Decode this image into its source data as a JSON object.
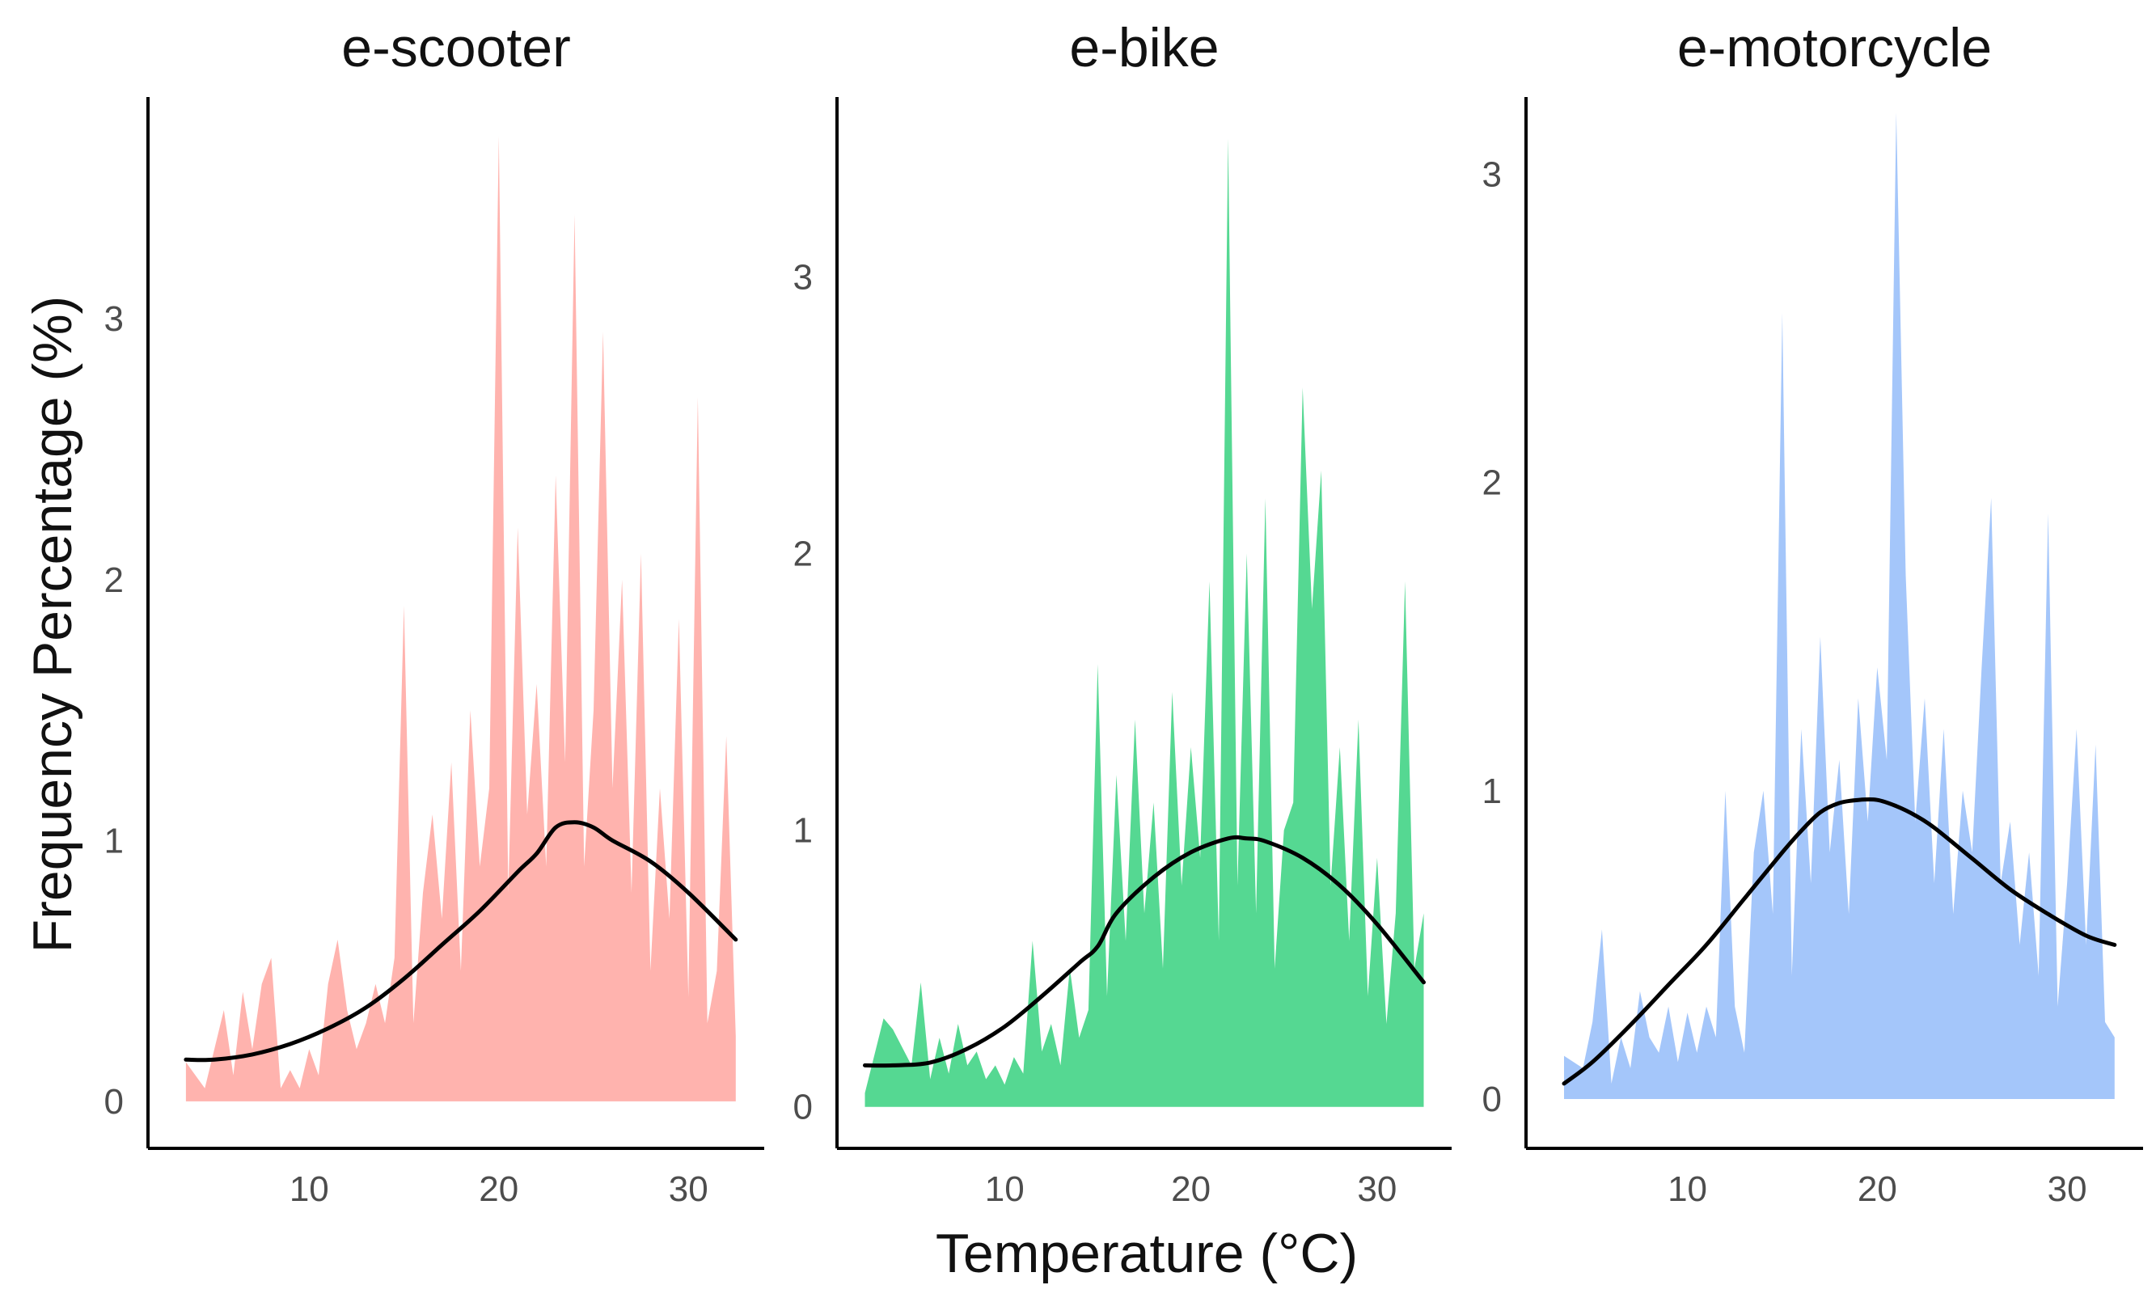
{
  "chart_data": {
    "type": "area",
    "xlabel": "Temperature (°C)",
    "ylabel": "Frequency Percentage (%)",
    "x_ticks": [
      10,
      20,
      30
    ],
    "panels": [
      {
        "title": "e-scooter",
        "color": "#ffb3ae",
        "xlim": [
          1.5,
          34
        ],
        "ylim": [
          -0.18,
          3.85
        ],
        "y_ticks": [
          0,
          1,
          2,
          3
        ],
        "x": [
          3.5,
          4.5,
          5.5,
          6.0,
          6.5,
          7.0,
          7.5,
          8.0,
          8.5,
          9.0,
          9.5,
          10.0,
          10.5,
          11.0,
          11.5,
          12.0,
          12.5,
          13.0,
          13.5,
          14.0,
          14.5,
          15.0,
          15.5,
          16.0,
          16.5,
          17.0,
          17.5,
          18.0,
          18.5,
          19.0,
          19.5,
          20.0,
          20.5,
          21.0,
          21.5,
          22.0,
          22.5,
          23.0,
          23.5,
          24.0,
          24.5,
          25.0,
          25.5,
          26.0,
          26.5,
          27.0,
          27.5,
          28.0,
          28.5,
          29.0,
          29.5,
          30.0,
          30.5,
          31.0,
          31.5,
          32.0,
          32.5
        ],
        "values": [
          0.15,
          0.05,
          0.35,
          0.1,
          0.42,
          0.2,
          0.45,
          0.55,
          0.05,
          0.12,
          0.05,
          0.2,
          0.1,
          0.45,
          0.62,
          0.35,
          0.2,
          0.3,
          0.45,
          0.3,
          0.55,
          1.9,
          0.3,
          0.8,
          1.1,
          0.7,
          1.3,
          0.5,
          1.5,
          0.9,
          1.2,
          3.7,
          0.8,
          2.2,
          1.1,
          1.6,
          0.9,
          2.4,
          1.3,
          3.4,
          0.9,
          1.5,
          2.95,
          1.2,
          2.0,
          0.8,
          2.1,
          0.5,
          1.2,
          0.7,
          1.85,
          0.4,
          2.7,
          0.3,
          0.5,
          1.4,
          0.25
        ],
        "smooth_x": [
          3.5,
          5,
          7,
          9,
          11,
          13,
          15,
          17,
          19,
          21,
          22,
          23,
          24,
          25,
          26,
          28,
          30,
          32.5
        ],
        "smooth_y": [
          0.16,
          0.16,
          0.18,
          0.22,
          0.28,
          0.36,
          0.47,
          0.6,
          0.73,
          0.88,
          0.95,
          1.05,
          1.07,
          1.05,
          1.0,
          0.92,
          0.8,
          0.62
        ]
      },
      {
        "title": "e-bike",
        "color": "#55d892",
        "xlim": [
          1.0,
          34
        ],
        "ylim": [
          -0.15,
          3.65
        ],
        "y_ticks": [
          0,
          1,
          2,
          3
        ],
        "x": [
          2.5,
          3.5,
          4.0,
          5.0,
          5.5,
          6.0,
          6.5,
          7.0,
          7.5,
          8.0,
          8.5,
          9.0,
          9.5,
          10.0,
          10.5,
          11.0,
          11.5,
          12.0,
          12.5,
          13.0,
          13.5,
          14.0,
          14.5,
          15.0,
          15.5,
          16.0,
          16.5,
          17.0,
          17.5,
          18.0,
          18.5,
          19.0,
          19.5,
          20.0,
          20.5,
          21.0,
          21.5,
          22.0,
          22.5,
          23.0,
          23.5,
          24.0,
          24.5,
          25.0,
          25.5,
          26.0,
          26.5,
          27.0,
          27.5,
          28.0,
          28.5,
          29.0,
          29.5,
          30.0,
          30.5,
          31.0,
          31.5,
          32.0,
          32.5
        ],
        "values": [
          0.05,
          0.32,
          0.28,
          0.15,
          0.45,
          0.1,
          0.25,
          0.12,
          0.3,
          0.15,
          0.2,
          0.1,
          0.15,
          0.08,
          0.18,
          0.12,
          0.6,
          0.2,
          0.3,
          0.15,
          0.5,
          0.25,
          0.35,
          1.6,
          0.4,
          1.2,
          0.6,
          1.4,
          0.7,
          1.1,
          0.5,
          1.5,
          0.8,
          1.3,
          0.9,
          1.9,
          0.6,
          3.5,
          0.8,
          2.0,
          0.7,
          2.2,
          0.5,
          1.0,
          1.1,
          2.6,
          1.8,
          2.3,
          0.8,
          1.3,
          0.6,
          1.4,
          0.4,
          0.9,
          0.3,
          0.7,
          1.9,
          0.5,
          0.7
        ],
        "smooth_x": [
          2.5,
          4,
          6,
          8,
          10,
          12,
          14,
          15,
          16,
          18,
          20,
          22,
          23,
          24,
          26,
          28,
          30,
          32.5
        ],
        "smooth_y": [
          0.15,
          0.15,
          0.16,
          0.21,
          0.29,
          0.4,
          0.52,
          0.58,
          0.7,
          0.83,
          0.92,
          0.97,
          0.97,
          0.96,
          0.9,
          0.8,
          0.66,
          0.45
        ]
      },
      {
        "title": "e-motorcycle",
        "color": "#a4c6fa",
        "xlim": [
          1.5,
          34
        ],
        "ylim": [
          -0.16,
          3.25
        ],
        "y_ticks": [
          0,
          1,
          2,
          3
        ],
        "x": [
          3.5,
          4.5,
          5.0,
          5.5,
          6.0,
          6.5,
          7.0,
          7.5,
          8.0,
          8.5,
          9.0,
          9.5,
          10.0,
          10.5,
          11.0,
          11.5,
          12.0,
          12.5,
          13.0,
          13.5,
          14.0,
          14.5,
          15.0,
          15.5,
          16.0,
          16.5,
          17.0,
          17.5,
          18.0,
          18.5,
          19.0,
          19.5,
          20.0,
          20.5,
          21.0,
          21.5,
          22.0,
          22.5,
          23.0,
          23.5,
          24.0,
          24.5,
          25.0,
          25.5,
          26.0,
          26.5,
          27.0,
          27.5,
          28.0,
          28.5,
          29.0,
          29.5,
          30.0,
          30.5,
          31.0,
          31.5,
          32.0,
          32.5
        ],
        "values": [
          0.14,
          0.1,
          0.25,
          0.55,
          0.05,
          0.2,
          0.1,
          0.35,
          0.2,
          0.15,
          0.3,
          0.12,
          0.28,
          0.15,
          0.3,
          0.2,
          1.0,
          0.3,
          0.15,
          0.8,
          1.0,
          0.6,
          2.55,
          0.4,
          1.2,
          0.7,
          1.5,
          0.8,
          1.1,
          0.6,
          1.3,
          0.9,
          1.4,
          1.1,
          3.2,
          1.7,
          0.9,
          1.3,
          0.7,
          1.2,
          0.6,
          1.0,
          0.8,
          1.4,
          1.95,
          0.7,
          0.9,
          0.5,
          0.8,
          0.4,
          1.9,
          0.3,
          0.7,
          1.2,
          0.5,
          1.15,
          0.25,
          0.2
        ],
        "smooth_x": [
          3.5,
          5,
          7,
          9,
          11,
          13,
          15,
          16,
          17,
          18,
          19,
          20,
          21,
          22,
          23,
          25,
          27,
          29,
          31,
          32.5
        ],
        "smooth_y": [
          0.05,
          0.12,
          0.24,
          0.37,
          0.5,
          0.65,
          0.8,
          0.87,
          0.93,
          0.96,
          0.97,
          0.97,
          0.95,
          0.92,
          0.88,
          0.78,
          0.68,
          0.6,
          0.53,
          0.5
        ]
      }
    ]
  }
}
